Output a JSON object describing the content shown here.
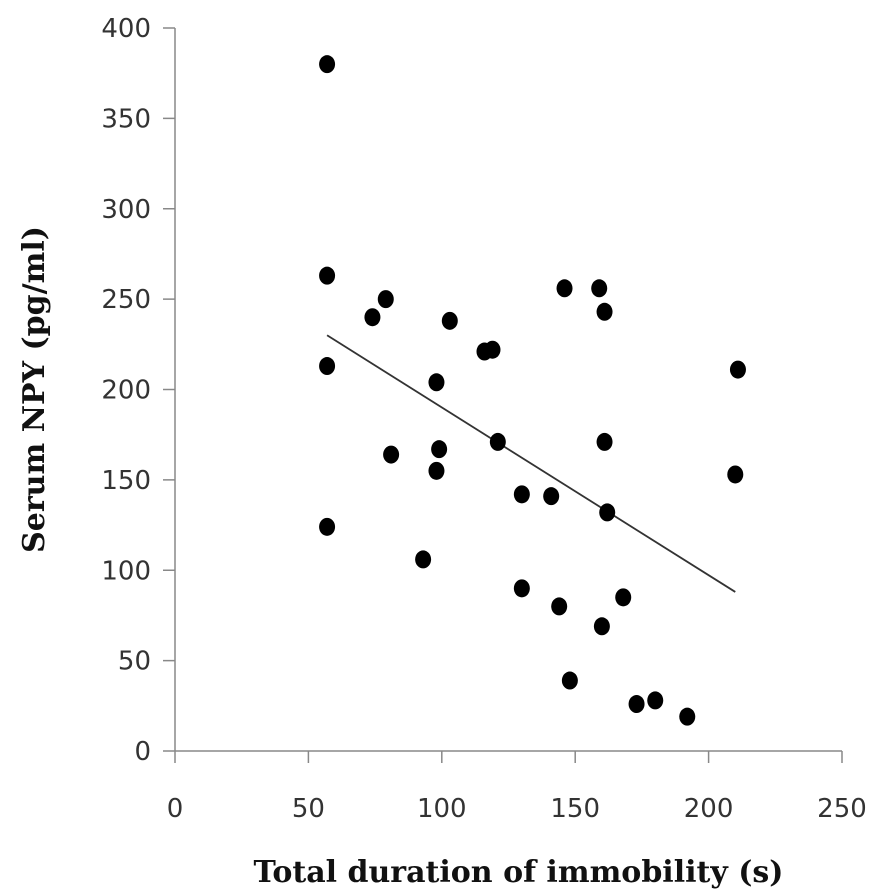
{
  "chart_data": {
    "type": "scatter",
    "title": "",
    "xlabel": "Total duration of immobility (s)",
    "ylabel": "Serum NPY (pg/ml)",
    "xlim": [
      0,
      250
    ],
    "ylim": [
      0,
      400
    ],
    "x_ticks": [
      "0",
      "50",
      "100",
      "150",
      "200",
      "250"
    ],
    "y_ticks": [
      "0",
      "50",
      "100",
      "150",
      "200",
      "250",
      "300",
      "350",
      "400"
    ],
    "grid": false,
    "legend": "none",
    "marker_color": "#000000",
    "trendline": {
      "type": "linear",
      "x": [
        57,
        210
      ],
      "y": [
        230,
        88
      ]
    },
    "points": [
      {
        "x": 57,
        "y": 380
      },
      {
        "x": 57,
        "y": 263
      },
      {
        "x": 57,
        "y": 213
      },
      {
        "x": 57,
        "y": 124
      },
      {
        "x": 74,
        "y": 240
      },
      {
        "x": 79,
        "y": 250
      },
      {
        "x": 81,
        "y": 164
      },
      {
        "x": 93,
        "y": 106
      },
      {
        "x": 98,
        "y": 204
      },
      {
        "x": 98,
        "y": 155
      },
      {
        "x": 99,
        "y": 167
      },
      {
        "x": 103,
        "y": 238
      },
      {
        "x": 116,
        "y": 221
      },
      {
        "x": 119,
        "y": 222
      },
      {
        "x": 121,
        "y": 171
      },
      {
        "x": 130,
        "y": 142
      },
      {
        "x": 130,
        "y": 90
      },
      {
        "x": 141,
        "y": 141
      },
      {
        "x": 144,
        "y": 80
      },
      {
        "x": 146,
        "y": 256
      },
      {
        "x": 148,
        "y": 39
      },
      {
        "x": 159,
        "y": 256
      },
      {
        "x": 160,
        "y": 69
      },
      {
        "x": 161,
        "y": 243
      },
      {
        "x": 161,
        "y": 171
      },
      {
        "x": 162,
        "y": 132
      },
      {
        "x": 168,
        "y": 85
      },
      {
        "x": 173,
        "y": 26
      },
      {
        "x": 180,
        "y": 28
      },
      {
        "x": 192,
        "y": 19
      },
      {
        "x": 210,
        "y": 153
      },
      {
        "x": 211,
        "y": 211
      }
    ]
  }
}
